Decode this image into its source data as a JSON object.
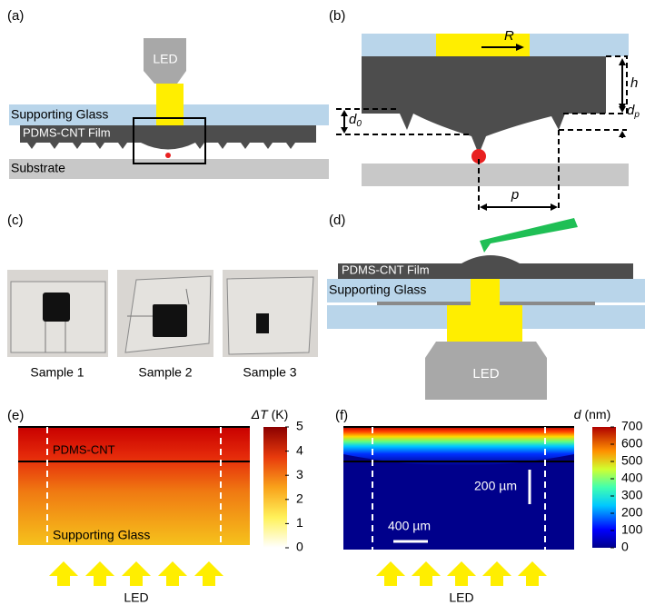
{
  "panel_a": {
    "label": "(a)",
    "led": "LED",
    "glass": "Supporting Glass",
    "film": "PDMS-CNT Film",
    "substrate": "Substrate"
  },
  "panel_b": {
    "label": "(b)",
    "radius": "R",
    "height": "h",
    "tip_d": "d",
    "tip_d_sub": "p",
    "base_d": "d",
    "base_d_sub": "0",
    "pitch": "p"
  },
  "panel_c": {
    "label": "(c)",
    "samples": [
      "Sample 1",
      "Sample 2",
      "Sample 3"
    ]
  },
  "panel_d": {
    "label": "(d)",
    "film": "PDMS-CNT Film",
    "glass": "Supporting Glass",
    "led": "LED"
  },
  "panel_e": {
    "label": "(e)",
    "colorbar_symbol": "ΔT",
    "colorbar_unit": "(K)",
    "colorbar_ticks": [
      0,
      1,
      2,
      3,
      4,
      5
    ],
    "film": "PDMS-CNT",
    "glass": "Supporting Glass",
    "led": "LED"
  },
  "panel_f": {
    "label": "(f)",
    "colorbar_symbol": "d",
    "colorbar_unit": "(nm)",
    "colorbar_ticks": [
      0,
      100,
      200,
      300,
      400,
      500,
      600,
      700
    ],
    "vertical_scale": "200 µm",
    "horizontal_scale": "400 µm",
    "led": "LED"
  }
}
